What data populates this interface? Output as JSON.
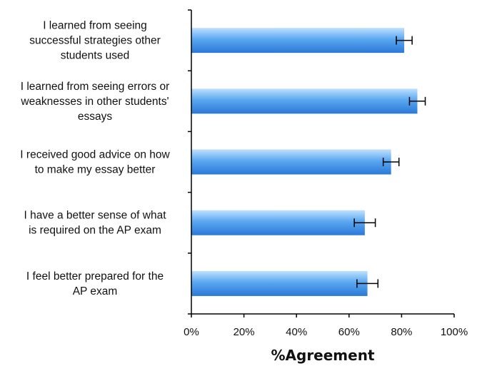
{
  "chart_data": {
    "type": "bar",
    "orientation": "horizontal",
    "categories": [
      [
        "I learned from seeing",
        "successful strategies other",
        "students used"
      ],
      [
        "I learned from seeing errors or",
        "weaknesses in other students'",
        "essays"
      ],
      [
        "I received good advice on how",
        "to make my essay better"
      ],
      [
        "I have a better sense of what",
        "is required on the AP exam"
      ],
      [
        "I feel better prepared for the",
        "AP exam"
      ]
    ],
    "values": [
      81,
      86,
      76,
      66,
      67
    ],
    "errors": [
      3,
      3,
      3,
      4,
      4
    ],
    "xlabel": "%Agreement",
    "xlim": [
      0,
      100
    ],
    "x_ticks": [
      "0%",
      "20%",
      "40%",
      "60%",
      "80%",
      "100%"
    ],
    "grid": false,
    "bar_color": "#5aa8f0",
    "bar_color_dark": "#2b78d8",
    "bar_color_light": "#bfe0ff"
  }
}
